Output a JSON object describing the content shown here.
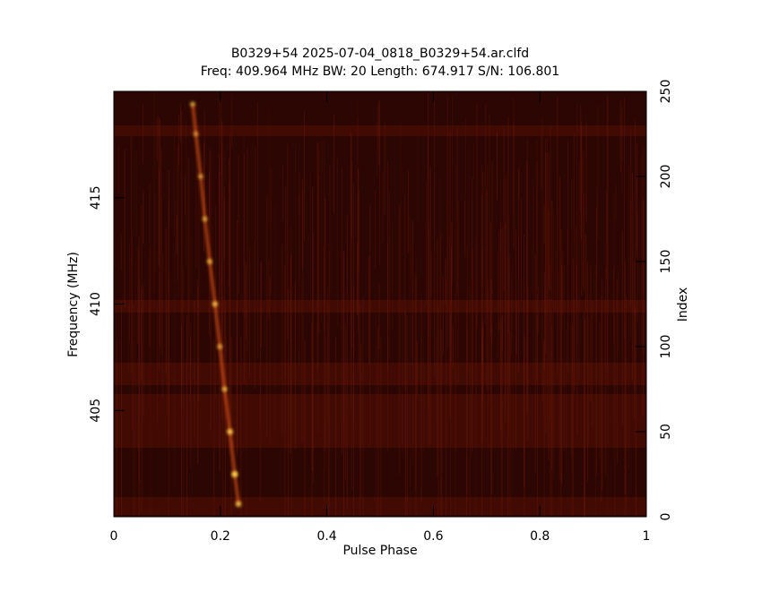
{
  "chart_data": {
    "type": "heatmap",
    "title": "B0329+54 2025-07-04_0818_B0329+54.ar.clfd",
    "subtitle": "Freq: 409.964 MHz BW: 20 Length: 674.917 S/N: 106.801",
    "xlabel": "Pulse Phase",
    "ylabel": "Frequency (MHz)",
    "y2label": "Index",
    "xlim": [
      0,
      1
    ],
    "xticks": [
      0,
      0.2,
      0.4,
      0.6,
      0.8,
      1
    ],
    "ylim": [
      400,
      420
    ],
    "yticks": [
      405,
      410,
      415
    ],
    "y2lim": [
      0,
      250
    ],
    "y2ticks": [
      0,
      50,
      100,
      150,
      200,
      250
    ],
    "background_color": "#2b0602",
    "color": "#ffd24a",
    "points": {
      "phase": [
        0.148,
        0.154,
        0.163,
        0.171,
        0.18,
        0.19,
        0.199,
        0.208,
        0.218,
        0.227,
        0.234
      ],
      "freq": [
        419.4,
        418,
        416,
        414,
        412,
        410,
        408,
        406,
        404,
        402,
        400.6
      ],
      "intensity": [
        0.7,
        0.6,
        0.65,
        0.7,
        0.75,
        0.8,
        0.7,
        0.75,
        0.9,
        1,
        0.85
      ]
    }
  }
}
